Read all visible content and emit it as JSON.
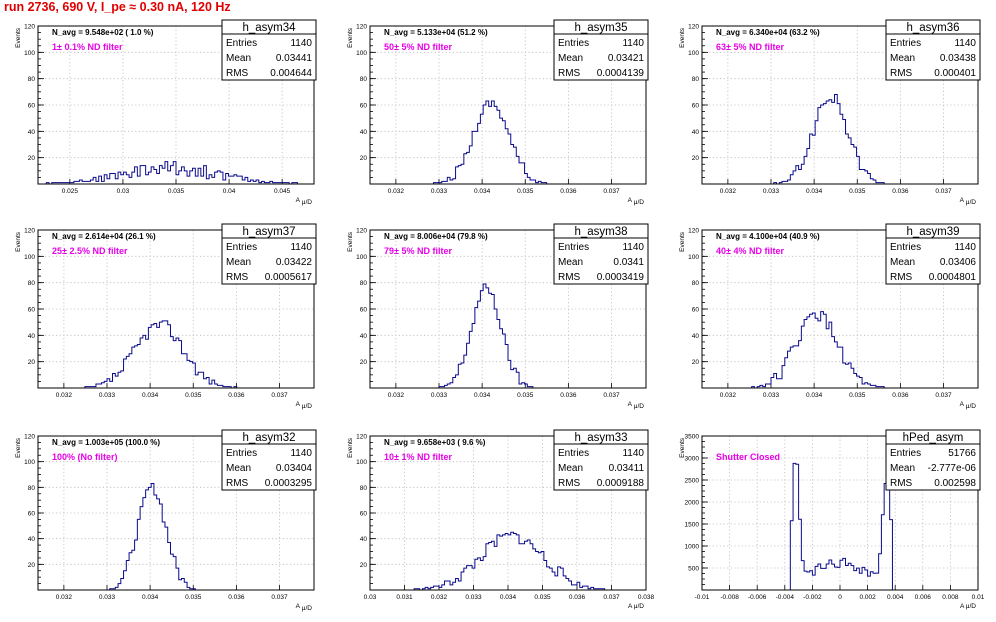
{
  "title": "run 2736,   690 V, I_pe ≈ 0.30 nA, 120 Hz",
  "labels": {
    "ylabel": "Events",
    "xlabel": "A",
    "xlabel_sub": "μ/D",
    "stat_entries": "Entries",
    "stat_mean": "Mean",
    "stat_rms": "RMS"
  },
  "colors": {
    "title": "#e00000",
    "histogram": "#0a0a8c",
    "filter_text": "#e800e8",
    "grid": "#bbbbbb"
  },
  "chart_data": [
    {
      "type": "histogram",
      "name": "h_asym34",
      "navg": "N_avg = 9.548e+02 ( 1.0 %)",
      "filter": "1± 0.1% ND filter",
      "entries": "1140",
      "mean": "0.03441",
      "rms": "0.004644",
      "xlim": [
        0.022,
        0.048
      ],
      "ylim": [
        0,
        120
      ],
      "xticks": [
        0.025,
        0.03,
        0.035,
        0.04,
        0.045
      ],
      "xticklabels": [
        "0.025",
        "0.03",
        "0.035",
        "0.04",
        "0.045"
      ],
      "yticks": [
        20,
        40,
        60,
        80,
        100,
        120
      ],
      "peaks": [
        {
          "mu": 0.0344,
          "sigma": 0.0046,
          "amp": 12
        }
      ],
      "noise": 6,
      "seed": 34,
      "grid": true,
      "xlabel": true
    },
    {
      "type": "histogram",
      "name": "h_asym35",
      "navg": "N_avg = 5.133e+04 (51.2 %)",
      "filter": "50± 5% ND filter",
      "entries": "1140",
      "mean": "0.03421",
      "rms": "0.0004139",
      "xlim": [
        0.0314,
        0.0378
      ],
      "ylim": [
        0,
        120
      ],
      "xticks": [
        0.032,
        0.033,
        0.034,
        0.035,
        0.036,
        0.037
      ],
      "xticklabels": [
        "0.032",
        "0.033",
        "0.034",
        "0.035",
        "0.036",
        "0.037"
      ],
      "yticks": [
        20,
        40,
        60,
        80,
        100,
        120
      ],
      "peaks": [
        {
          "mu": 0.03421,
          "sigma": 0.000414,
          "amp": 62
        }
      ],
      "noise": 4,
      "seed": 35,
      "grid": true,
      "xlabel": true
    },
    {
      "type": "histogram",
      "name": "h_asym36",
      "navg": "N_avg = 6.340e+04 (63.2 %)",
      "filter": "63± 5% ND filter",
      "entries": "1140",
      "mean": "0.03438",
      "rms": "0.000401",
      "xlim": [
        0.0314,
        0.0378
      ],
      "ylim": [
        0,
        120
      ],
      "xticks": [
        0.032,
        0.033,
        0.034,
        0.035,
        0.036,
        0.037
      ],
      "xticklabels": [
        "0.032",
        "0.033",
        "0.034",
        "0.035",
        "0.036",
        "0.037"
      ],
      "yticks": [
        20,
        40,
        60,
        80,
        100,
        120
      ],
      "peaks": [
        {
          "mu": 0.03438,
          "sigma": 0.000401,
          "amp": 66
        }
      ],
      "noise": 5,
      "seed": 36,
      "grid": true,
      "xlabel": true
    },
    {
      "type": "histogram",
      "name": "h_asym37",
      "navg": "N_avg = 2.614e+04 (26.1 %)",
      "filter": "25± 2.5% ND filter",
      "entries": "1140",
      "mean": "0.03422",
      "rms": "0.0005617",
      "xlim": [
        0.0314,
        0.0378
      ],
      "ylim": [
        0,
        120
      ],
      "xticks": [
        0.032,
        0.033,
        0.034,
        0.035,
        0.036,
        0.037
      ],
      "xticklabels": [
        "0.032",
        "0.033",
        "0.034",
        "0.035",
        "0.036",
        "0.037"
      ],
      "yticks": [
        20,
        40,
        60,
        80,
        100,
        120
      ],
      "peaks": [
        {
          "mu": 0.03422,
          "sigma": 0.00056,
          "amp": 48
        }
      ],
      "noise": 5,
      "seed": 37,
      "grid": true,
      "xlabel": true
    },
    {
      "type": "histogram",
      "name": "h_asym38",
      "navg": "N_avg = 8.006e+04 (79.8 %)",
      "filter": "79± 5% ND filter",
      "entries": "1140",
      "mean": "0.0341",
      "rms": "0.0003419",
      "xlim": [
        0.0314,
        0.0378
      ],
      "ylim": [
        0,
        120
      ],
      "xticks": [
        0.032,
        0.033,
        0.034,
        0.035,
        0.036,
        0.037
      ],
      "xticklabels": [
        "0.032",
        "0.033",
        "0.034",
        "0.035",
        "0.036",
        "0.037"
      ],
      "yticks": [
        20,
        40,
        60,
        80,
        100,
        120
      ],
      "peaks": [
        {
          "mu": 0.0341,
          "sigma": 0.000342,
          "amp": 76
        }
      ],
      "noise": 4,
      "seed": 38,
      "grid": true,
      "xlabel": true
    },
    {
      "type": "histogram",
      "name": "h_asym39",
      "navg": "N_avg = 4.100e+04 (40.9 %)",
      "filter": "40± 4% ND filter",
      "entries": "1140",
      "mean": "0.03406",
      "rms": "0.0004801",
      "xlim": [
        0.0314,
        0.0378
      ],
      "ylim": [
        0,
        120
      ],
      "xticks": [
        0.032,
        0.033,
        0.034,
        0.035,
        0.036,
        0.037
      ],
      "xticklabels": [
        "0.032",
        "0.033",
        "0.034",
        "0.035",
        "0.036",
        "0.037"
      ],
      "yticks": [
        20,
        40,
        60,
        80,
        100,
        120
      ],
      "peaks": [
        {
          "mu": 0.03406,
          "sigma": 0.00048,
          "amp": 56
        }
      ],
      "noise": 5,
      "seed": 39,
      "grid": true,
      "xlabel": true
    },
    {
      "type": "histogram",
      "name": "h_asym32",
      "navg": "N_avg = 1.003e+05 (100.0 %)",
      "filter": "100% (No filter)",
      "entries": "1140",
      "mean": "0.03404",
      "rms": "0.0003295",
      "xlim": [
        0.0314,
        0.0378
      ],
      "ylim": [
        0,
        120
      ],
      "xticks": [
        0.032,
        0.033,
        0.034,
        0.035,
        0.036,
        0.037
      ],
      "xticklabels": [
        "0.032",
        "0.033",
        "0.034",
        "0.035",
        "0.036",
        "0.037"
      ],
      "yticks": [
        20,
        40,
        60,
        80,
        100,
        120
      ],
      "peaks": [
        {
          "mu": 0.03404,
          "sigma": 0.00033,
          "amp": 80
        }
      ],
      "noise": 4,
      "seed": 32,
      "grid": true,
      "xlabel": true
    },
    {
      "type": "histogram",
      "name": "h_asym33",
      "navg": "N_avg = 9.658e+03 ( 9.6 %)",
      "filter": "10± 1% ND filter",
      "entries": "1140",
      "mean": "0.03411",
      "rms": "0.0009188",
      "xlim": [
        0.03,
        0.038
      ],
      "ylim": [
        0,
        120
      ],
      "xticks": [
        0.03,
        0.031,
        0.032,
        0.033,
        0.034,
        0.035,
        0.036,
        0.037,
        0.038
      ],
      "xticklabels": [
        "0.03",
        "0.031",
        "0.032",
        "0.033",
        "0.034",
        "0.035",
        "0.036",
        "0.037",
        "0.038"
      ],
      "yticks": [
        20,
        40,
        60,
        80,
        100,
        120
      ],
      "peaks": [
        {
          "mu": 0.03411,
          "sigma": 0.00092,
          "amp": 42
        }
      ],
      "noise": 5,
      "seed": 33,
      "grid": true,
      "xlabel": false
    },
    {
      "type": "histogram",
      "name": "hPed_asym",
      "navg": "",
      "filter": "Shutter Closed",
      "entries": "51766",
      "mean": "-2.777e-06",
      "rms": "0.002598",
      "xlim": [
        -0.01,
        0.01
      ],
      "ylim": [
        0,
        3500
      ],
      "xticks": [
        -0.01,
        -0.008,
        -0.006,
        -0.004,
        -0.002,
        0,
        0.002,
        0.004,
        0.006,
        0.008,
        0.01
      ],
      "xticklabels": [
        "-0.01",
        "-0.008",
        "-0.006",
        "-0.004",
        "-0.002",
        "0",
        "0.002",
        "0.004",
        "0.006",
        "0.008",
        "0.01"
      ],
      "yticks": [
        500,
        1000,
        1500,
        2000,
        2500,
        3000,
        3500
      ],
      "peaks": [
        {
          "mu": -0.0032,
          "sigma": 0.00025,
          "amp": 2800
        },
        {
          "mu": 0.0034,
          "sigma": 0.0003,
          "amp": 2300
        },
        {
          "mu": 0.0,
          "sigma": 0.0022,
          "amp": 620
        }
      ],
      "cut": [
        -0.0036,
        0.0039
      ],
      "noise": 120,
      "seed": 99,
      "grid": true,
      "xlabel": false
    }
  ]
}
